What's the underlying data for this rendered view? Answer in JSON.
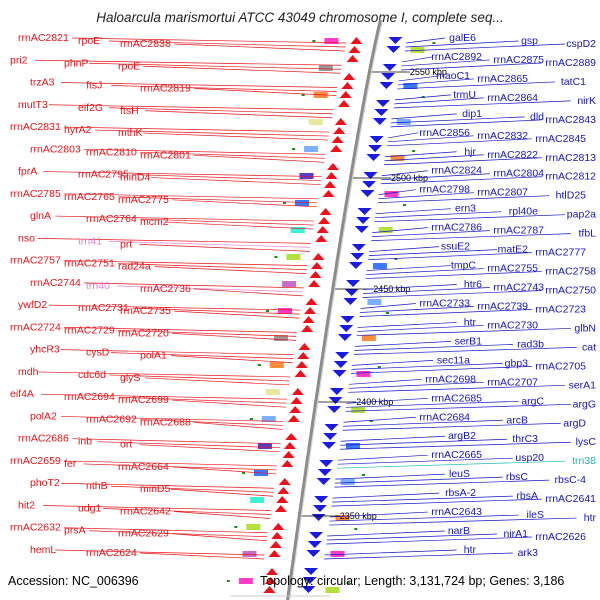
{
  "title": "Haloarcula marismortui ATCC 43049 chromosome I, complete seq...",
  "footer": {
    "accession": "Accession: NC_006396",
    "topology": "Topology: circular; Length: 3,131,724 bp; Genes: 3,186"
  },
  "colors": {
    "left_labels": "#e8141a",
    "right_labels": "#1414c8",
    "rna_labels_left": "#e87ed2",
    "rna_labels_right": "#1fb8b8",
    "backbone": "#8c8c8c",
    "forward_arrow": "#f0101a",
    "reverse_arrow": "#1a1ae0"
  },
  "scale_labels": [
    "2550 kbp",
    "2500 kbp",
    "2450 kbp",
    "2400 kbp",
    "2350 kbp"
  ],
  "left_genes": [
    "rrnAC2821",
    "rpoE'",
    "rrnAC2838",
    "pri2",
    "phnP",
    "rpoE",
    "trzA3",
    "ftsJ",
    "rrnAC2819",
    "mutT3",
    "eif2G",
    "ftsH",
    "rrnAC2831",
    "hyrA2",
    "mthK",
    "rrnAC2803",
    "rrnAC2810",
    "rrnAC2801",
    "fprA",
    "rrnAC2795",
    "minD4",
    "rrnAC2785",
    "rrnAC2765",
    "rrnAC2775",
    "glnA",
    "rrnAC2764",
    "mcm2",
    "nso",
    "trn41",
    "prt",
    "rrnAC2757",
    "rrnAC2751",
    "rad24a",
    "rrnAC2744",
    "trn40",
    "rrnAC2736",
    "ywfD2",
    "rrnAC2731",
    "rrnAC2735",
    "rrnAC2724",
    "rrnAC2729",
    "rrnAC2720",
    "yhcR3",
    "cysD",
    "polA1",
    "mdh",
    "cdc6d",
    "glyS",
    "eif4A",
    "rrnAC2694",
    "rrnAC2699",
    "polA2",
    "rrnAC2692",
    "rrnAC2688",
    "rrnAC2686",
    "inb",
    "ort",
    "rrnAC2659",
    "fer",
    "rrnAC2664",
    "phoT2",
    "nthB",
    "minD5",
    "hit2",
    "udg1",
    "rrnAC2642",
    "rrnAC2632",
    "prsA",
    "rrnAC2629",
    "hemL",
    "rrnAC2624"
  ],
  "right_genes": [
    "galE6",
    "gsp",
    "cspD2",
    "rrnAC2892",
    "rrnAC2875",
    "rrnAC2889",
    "maoC1",
    "rrnAC2865",
    "tatC1",
    "trmU",
    "rrnAC2864",
    "nirK",
    "dip1",
    "dld",
    "rrnAC2843",
    "rrnAC2856",
    "rrnAC2832",
    "rrnAC2845",
    "hjr",
    "rrnAC2822",
    "rrnAC2813",
    "rrnAC2824",
    "rrnAC2804",
    "rrnAC2812",
    "rrnAC2798",
    "rrnAC2807",
    "htlD25",
    "ern3",
    "rpl40e",
    "pap2a",
    "rrnAC2786",
    "rrnAC2787",
    "tfbL",
    "ssuE2",
    "matE2",
    "rrnAC2777",
    "tmpC",
    "rrnAC2755",
    "rrnAC2758",
    "htr6",
    "rrnAC2743",
    "rrnAC2750",
    "rrnAC2733",
    "rrnAC2739",
    "rrnAC2723",
    "htr",
    "rrnAC2730",
    "glbN",
    "serB1",
    "rad3b",
    "cat",
    "sec11a",
    "gbp3",
    "rrnAC2705",
    "rrnAC2698",
    "rrnAC2707",
    "serA1",
    "rrnAC2685",
    "argC",
    "argG",
    "rrnAC2684",
    "arcB",
    "argD",
    "argB2",
    "thrC3",
    "lysC",
    "rrnAC2665",
    "usp20",
    "trn38",
    "leuS",
    "rbsC",
    "rbsC-4",
    "rbsA-2",
    "rbsA",
    "rrnAC2641",
    "rrnAC2643",
    "ileS",
    "htr",
    "narB",
    "nirA1",
    "rrnAC2626",
    "htr",
    "ark3"
  ]
}
